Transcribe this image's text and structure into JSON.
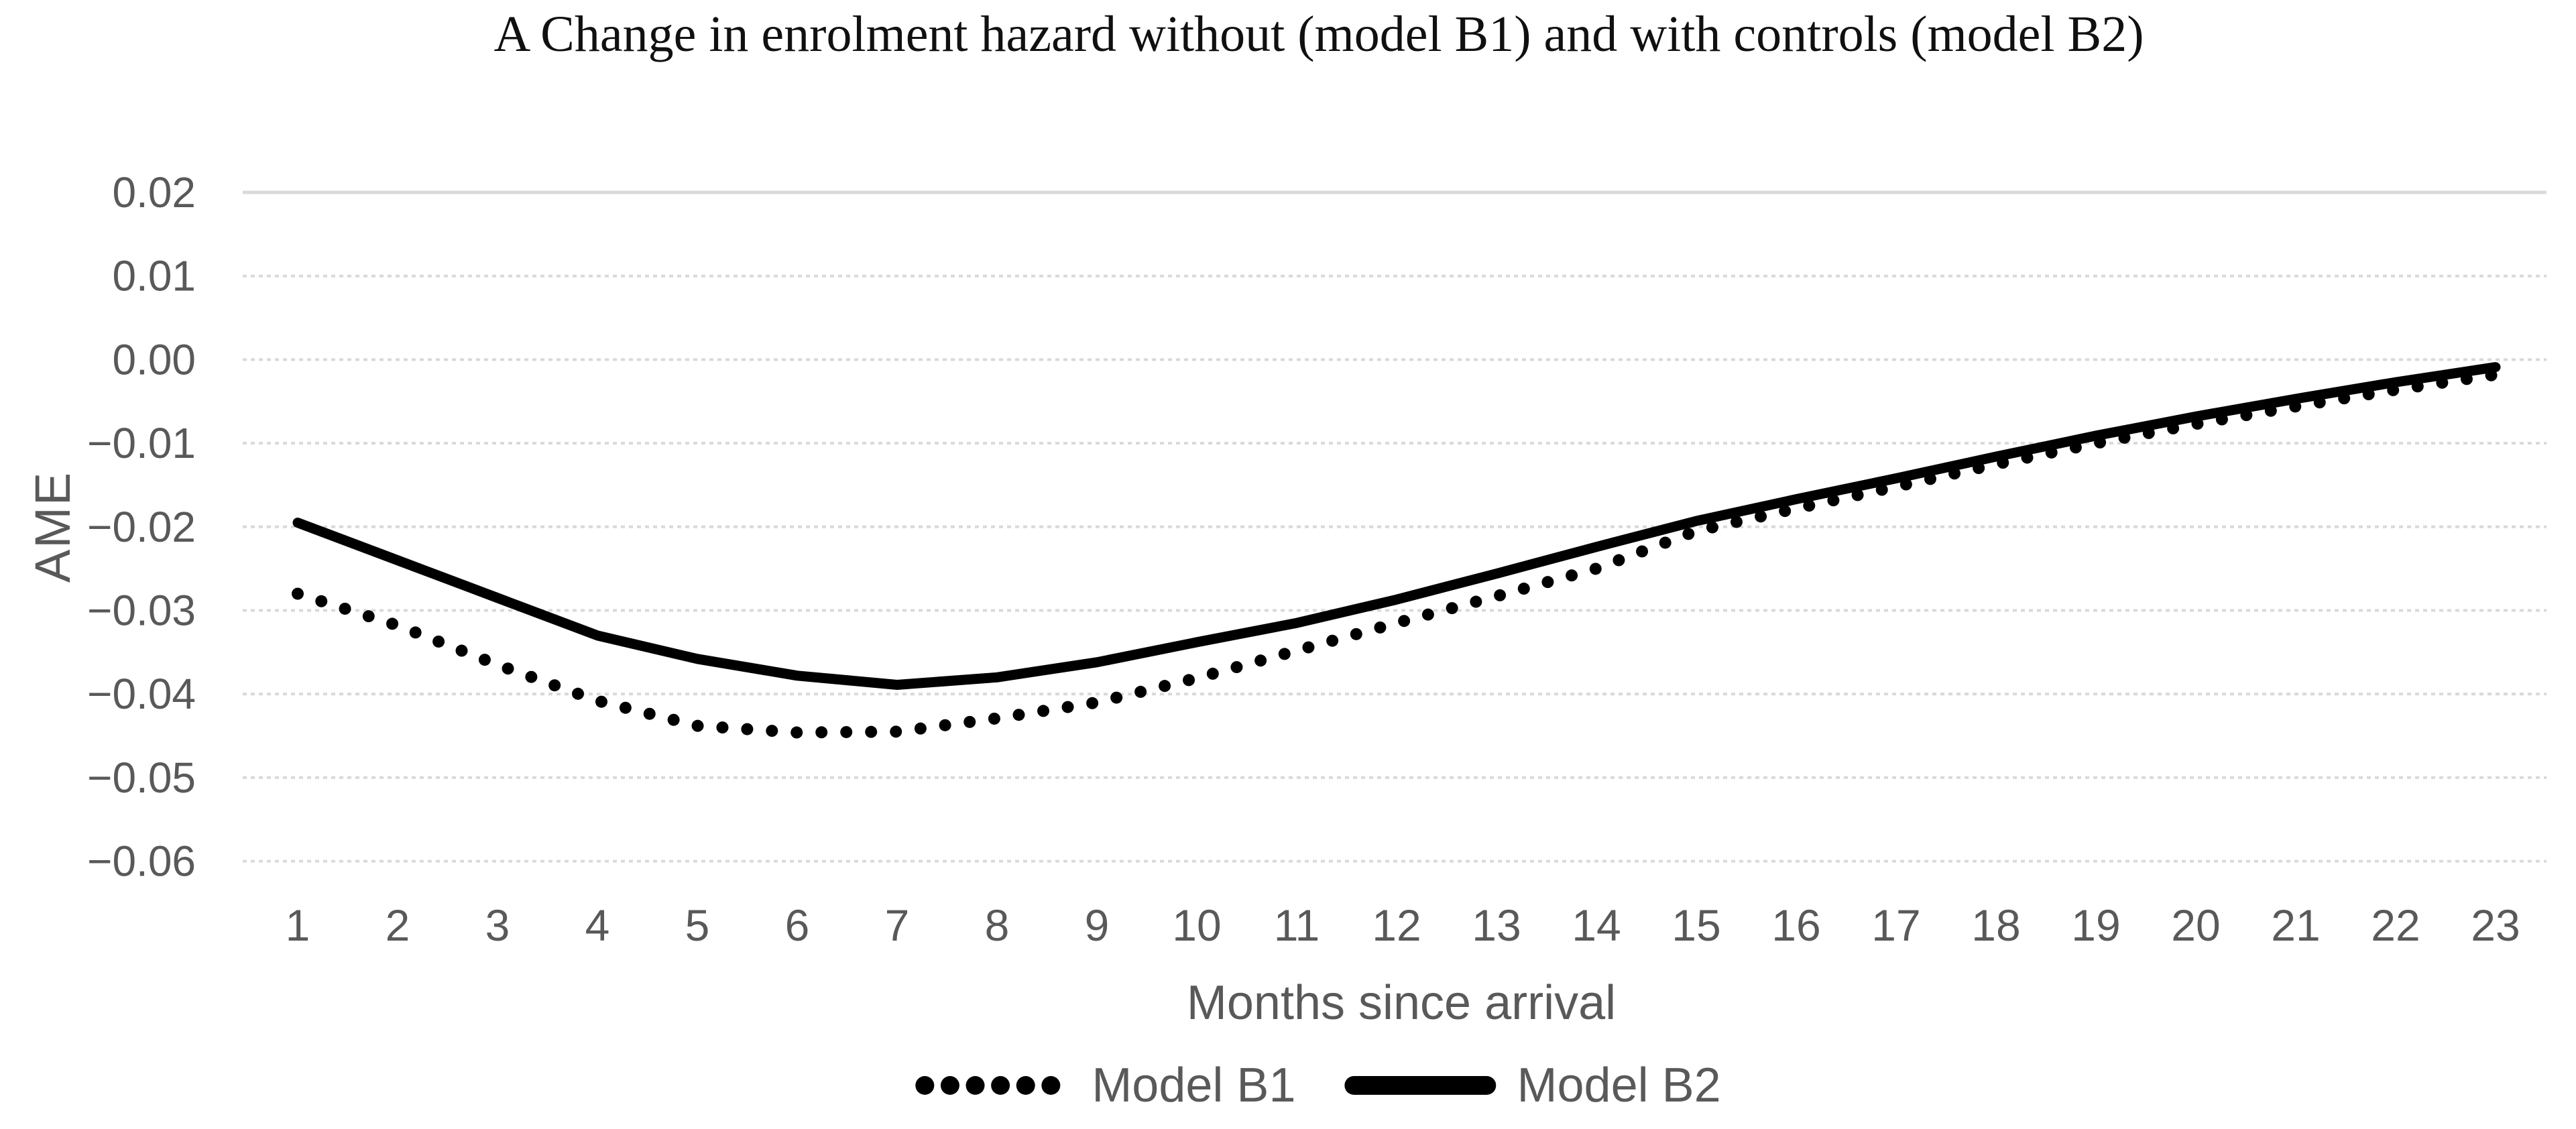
{
  "title": "A Change in enrolment hazard without (model B1) and with controls (model B2)",
  "chart_data": {
    "type": "line",
    "title": "A Change in enrolment hazard without (model B1) and with controls (model B2)",
    "xlabel": "Months since arrival",
    "ylabel": "AME",
    "x": [
      1,
      2,
      3,
      4,
      5,
      6,
      7,
      8,
      9,
      10,
      11,
      12,
      13,
      14,
      15,
      16,
      17,
      18,
      19,
      20,
      21,
      22,
      23
    ],
    "xtick_labels": [
      "1",
      "2",
      "3",
      "4",
      "5",
      "6",
      "7",
      "8",
      "9",
      "10",
      "11",
      "12",
      "13",
      "14",
      "15",
      "16",
      "17",
      "18",
      "19",
      "20",
      "21",
      "22",
      "23"
    ],
    "ylim": [
      -0.06,
      0.02
    ],
    "ytick_step": 0.01,
    "ytick_labels": [
      "0.02",
      "0.01",
      "0.00",
      "−0.01",
      "−0.02",
      "−0.03",
      "−0.04",
      "−0.05",
      "−0.06"
    ],
    "ytick_values": [
      0.02,
      0.01,
      0.0,
      -0.01,
      -0.02,
      -0.03,
      -0.04,
      -0.05,
      -0.06
    ],
    "grid": "horizontal",
    "legend_position": "bottom",
    "series": [
      {
        "name": "Model B1",
        "style": "dotted",
        "color": "#000000",
        "values": [
          -0.028,
          -0.0318,
          -0.0365,
          -0.0408,
          -0.0438,
          -0.0446,
          -0.0445,
          -0.0429,
          -0.041,
          -0.0381,
          -0.0348,
          -0.0315,
          -0.0283,
          -0.025,
          -0.0205,
          -0.0178,
          -0.0152,
          -0.0125,
          -0.01,
          -0.0077,
          -0.0056,
          -0.0036,
          -0.0018
        ]
      },
      {
        "name": "Model B2",
        "style": "solid",
        "color": "#000000",
        "values": [
          -0.0195,
          -0.024,
          -0.0285,
          -0.033,
          -0.0358,
          -0.0378,
          -0.0389,
          -0.038,
          -0.0362,
          -0.0338,
          -0.0315,
          -0.0287,
          -0.0256,
          -0.0224,
          -0.0193,
          -0.0167,
          -0.0142,
          -0.0116,
          -0.0091,
          -0.0068,
          -0.0047,
          -0.0027,
          -0.0009
        ]
      }
    ],
    "colors": {
      "gridline": "#d9d9d9",
      "axis_text": "#595959",
      "series": "#000000",
      "title_text": "#101010"
    }
  }
}
